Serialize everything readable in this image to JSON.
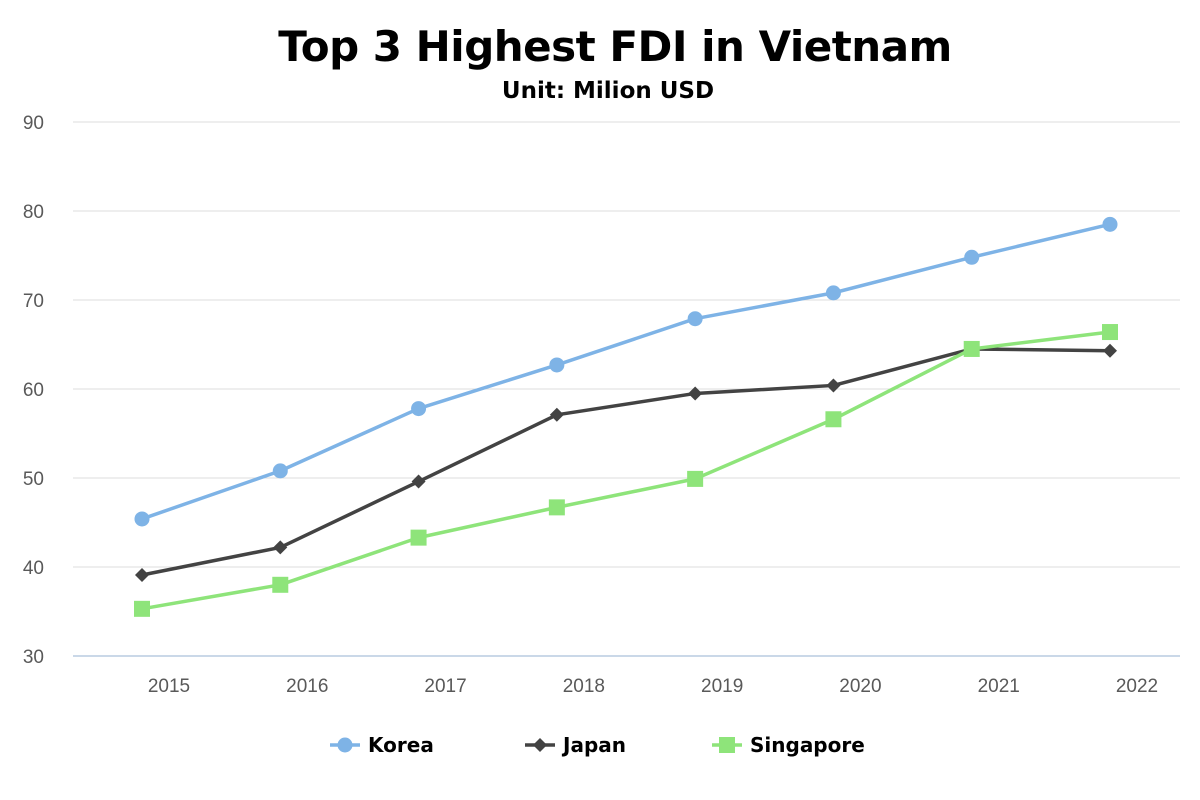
{
  "chart_data": {
    "type": "line",
    "title": "Top 3 Highest FDI in Vietnam",
    "subtitle": "Unit: Milion USD",
    "xlabel": "",
    "ylabel": "",
    "categories": [
      "2015",
      "2016",
      "2017",
      "2018",
      "2019",
      "2020",
      "2021",
      "2022"
    ],
    "ylim": [
      30,
      90
    ],
    "yticks": [
      30,
      40,
      50,
      60,
      70,
      80,
      90
    ],
    "grid": "horizontal",
    "legend_position": "bottom",
    "series": [
      {
        "name": "Korea",
        "color": "#7eb3e6",
        "marker": "circle",
        "values": [
          45.4,
          50.8,
          57.8,
          62.7,
          67.9,
          70.8,
          74.8,
          78.5
        ]
      },
      {
        "name": "Japan",
        "color": "#434343",
        "marker": "diamond",
        "values": [
          39.1,
          42.2,
          49.6,
          57.1,
          59.5,
          60.4,
          64.5,
          64.3
        ]
      },
      {
        "name": "Singapore",
        "color": "#8ee47a",
        "marker": "square",
        "values": [
          35.3,
          38.0,
          43.3,
          46.7,
          49.9,
          56.6,
          64.5,
          66.4
        ]
      }
    ]
  }
}
